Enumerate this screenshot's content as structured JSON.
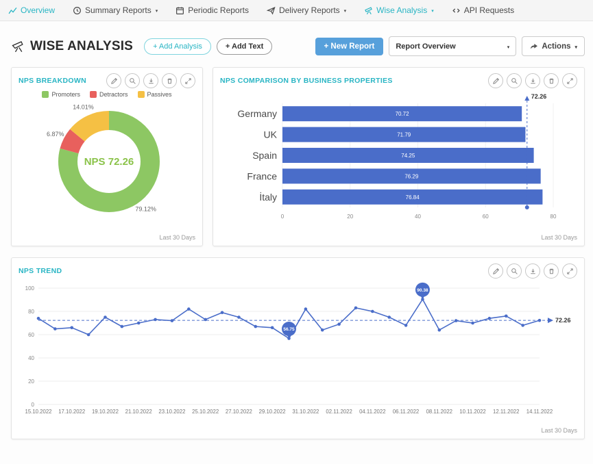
{
  "nav": {
    "items": [
      {
        "label": "Overview",
        "icon": "line-chart-icon",
        "active": true,
        "has_chevron": false
      },
      {
        "label": "Summary Reports",
        "icon": "clock-icon",
        "active": false,
        "has_chevron": true
      },
      {
        "label": "Periodic Reports",
        "icon": "calendar-icon",
        "active": false,
        "has_chevron": false
      },
      {
        "label": "Delivery Reports",
        "icon": "send-icon",
        "active": false,
        "has_chevron": true
      },
      {
        "label": "Wise Analysis",
        "icon": "telescope-icon",
        "active": true,
        "has_chevron": true
      },
      {
        "label": "API Requests",
        "icon": "terminal-icon",
        "active": false,
        "has_chevron": false
      }
    ]
  },
  "header": {
    "title": "WISE ANALYSIS",
    "add_analysis": "+ Add Analysis",
    "add_text": "+ Add Text",
    "new_report": "+ New Report",
    "report_select": "Report Overview",
    "actions": "Actions"
  },
  "widgets": {
    "toolbar_icons": [
      "pencil-icon",
      "magnifier-icon",
      "download-icon",
      "trash-icon",
      "expand-icon"
    ]
  },
  "colors": {
    "accent_teal": "#29b5c4",
    "chart_blue": "#4a6dc9",
    "button_blue": "#57a0db",
    "promoter_green": "#8dc763",
    "detractor_red": "#e8605d",
    "passive_yellow": "#f5c044"
  },
  "chart_data": [
    {
      "id": "nps-breakdown",
      "type": "pie",
      "donut": true,
      "title": "NPS BREAKDOWN",
      "center_label": "NPS 72.26",
      "center_color": "#8bc34a",
      "slices": [
        {
          "label": "Promoters",
          "value": 79.12,
          "color": "#8dc763"
        },
        {
          "label": "Detractors",
          "value": 6.87,
          "color": "#e8605d"
        },
        {
          "label": "Passives",
          "value": 14.01,
          "color": "#f5c044"
        }
      ],
      "footer": "Last 30 Days"
    },
    {
      "id": "nps-comparison",
      "type": "bar",
      "orientation": "horizontal",
      "title": "NPS COMPARISON BY BUSINESS PROPERTIES",
      "categories": [
        "Germany",
        "UK",
        "Spain",
        "France",
        "İtaly"
      ],
      "values": [
        70.72,
        71.79,
        74.25,
        76.29,
        76.84
      ],
      "xlim": [
        0,
        80
      ],
      "x_ticks": [
        0,
        20,
        40,
        60,
        80
      ],
      "reference_line": 72.26,
      "bar_color": "#4a6dc9",
      "footer": "Last 30 Days"
    },
    {
      "id": "nps-trend",
      "type": "line",
      "title": "NPS TREND",
      "x_labels": [
        "15.10.2022",
        "17.10.2022",
        "19.10.2022",
        "21.10.2022",
        "23.10.2022",
        "25.10.2022",
        "27.10.2022",
        "29.10.2022",
        "31.10.2022",
        "02.11.2022",
        "04.11.2022",
        "06.11.2022",
        "08.11.2022",
        "10.11.2022",
        "12.11.2022",
        "14.11.2022"
      ],
      "values": [
        74,
        65,
        66,
        60,
        75,
        67,
        70,
        73,
        72,
        82,
        73,
        79,
        75,
        67,
        66,
        56.75,
        82,
        64,
        69,
        83,
        80,
        75,
        68,
        90.38,
        64,
        72,
        70,
        74,
        76,
        68,
        72.26
      ],
      "ylim": [
        0,
        100
      ],
      "y_ticks": [
        0,
        20,
        40,
        60,
        80,
        100
      ],
      "reference_line": 72.26,
      "annotations": [
        {
          "index": 15,
          "value": 56.75
        },
        {
          "index": 23,
          "value": 90.38
        }
      ],
      "line_color": "#4a6dc9",
      "footer": "Last 30 Days"
    }
  ]
}
